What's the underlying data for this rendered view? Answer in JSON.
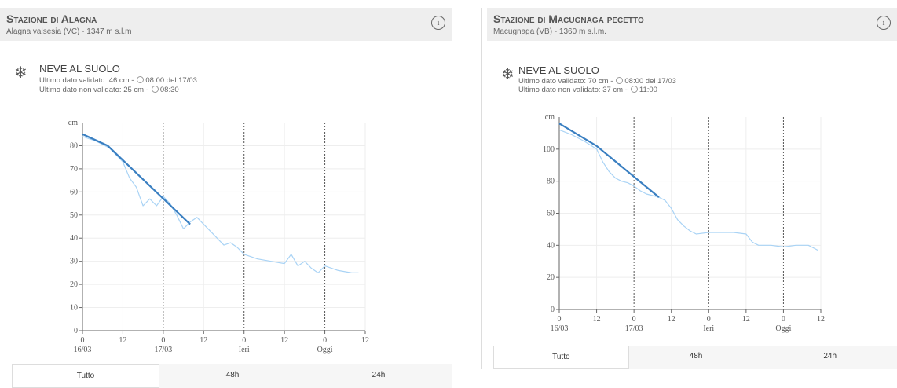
{
  "panels": [
    {
      "title": "Stazione di Alagna",
      "subtitle": "Alagna valsesia (VC) - 1347 m s.l.m",
      "section": "NEVE AL SUOLO",
      "notes": [
        {
          "text": "Ultimo dato validato: 46 cm -",
          "time": "08:00 del 17/03"
        },
        {
          "text": "Ultimo dato non validato: 25 cm -",
          "time": "08:30"
        }
      ],
      "buttons": [
        "Tutto",
        "48h",
        "24h"
      ]
    },
    {
      "title": "Stazione di Macugnaga pecetto",
      "subtitle": "Macugnaga (VB) - 1360 m s.l.m.",
      "section": "NEVE AL SUOLO",
      "notes": [
        {
          "text": "Ultimo dato validato: 70 cm -",
          "time": "08:00 del 17/03"
        },
        {
          "text": "Ultimo dato non validato: 37 cm -",
          "time": "11:00"
        }
      ],
      "buttons": [
        "Tutto",
        "48h",
        "24h"
      ]
    }
  ],
  "chart_data": [
    {
      "type": "line",
      "y_label": "cm",
      "xlim": [
        0,
        84
      ],
      "ylim": [
        0,
        90
      ],
      "grid": true,
      "xticks": [
        0,
        12,
        {
          "value": 24,
          "label": "0"
        },
        {
          "value": 36,
          "label": "12"
        },
        {
          "value": 48,
          "label": "0"
        },
        {
          "value": 60,
          "label": "12"
        },
        {
          "value": 72,
          "label": "0"
        },
        {
          "value": 84,
          "label": "12"
        }
      ],
      "xtick_sublabels": [
        "16/03",
        null,
        "17/03",
        null,
        "Ieri",
        null,
        "Oggi",
        null
      ],
      "yticks": [
        0,
        10,
        20,
        30,
        40,
        50,
        60,
        70,
        80
      ],
      "series": [
        {
          "color": "#a9d3f5",
          "x": [
            0,
            4,
            8,
            12,
            14,
            16,
            18,
            20,
            22,
            24,
            26,
            28,
            30,
            32,
            34,
            36,
            38,
            40,
            42,
            44,
            46,
            48,
            52,
            56,
            60,
            62,
            64,
            66,
            68,
            70,
            72,
            76,
            80,
            82
          ],
          "values": [
            84,
            82,
            79,
            73,
            66,
            62,
            54,
            57,
            54,
            58,
            55,
            50,
            44,
            47,
            49,
            46,
            43,
            40,
            37,
            38,
            36,
            33,
            31,
            30,
            29,
            33,
            28,
            30,
            27,
            25,
            28,
            26,
            25,
            25
          ]
        },
        {
          "color": "#3a7fc1",
          "x": [
            0,
            7.5,
            32
          ],
          "values": [
            85,
            80,
            46
          ]
        }
      ]
    },
    {
      "type": "line",
      "y_label": "cm",
      "xlim": [
        0,
        84
      ],
      "ylim": [
        0,
        120
      ],
      "grid": true,
      "xticks": [
        0,
        12,
        {
          "value": 24,
          "label": "0"
        },
        {
          "value": 36,
          "label": "12"
        },
        {
          "value": 48,
          "label": "0"
        },
        {
          "value": 60,
          "label": "12"
        },
        {
          "value": 72,
          "label": "0"
        },
        {
          "value": 84,
          "label": "12"
        }
      ],
      "xtick_sublabels": [
        "16/03",
        null,
        "17/03",
        null,
        "Ieri",
        null,
        "Oggi",
        null
      ],
      "yticks": [
        0,
        20,
        40,
        60,
        80,
        100
      ],
      "series": [
        {
          "color": "#a9d3f5",
          "x": [
            0,
            4,
            8,
            12,
            14,
            16,
            18,
            20,
            22,
            24,
            26,
            28,
            30,
            32,
            34,
            36,
            38,
            40,
            42,
            44,
            48,
            52,
            56,
            60,
            62,
            64,
            68,
            72,
            76,
            80,
            82,
            83
          ],
          "values": [
            112,
            109,
            105,
            100,
            92,
            86,
            82,
            80,
            79,
            77,
            74,
            72,
            71,
            70,
            68,
            63,
            56,
            52,
            49,
            47,
            48,
            48,
            48,
            47,
            42,
            40,
            40,
            39,
            40,
            40,
            38,
            37
          ]
        },
        {
          "color": "#3a7fc1",
          "x": [
            0,
            12,
            32
          ],
          "values": [
            116,
            102,
            70
          ]
        }
      ]
    }
  ]
}
